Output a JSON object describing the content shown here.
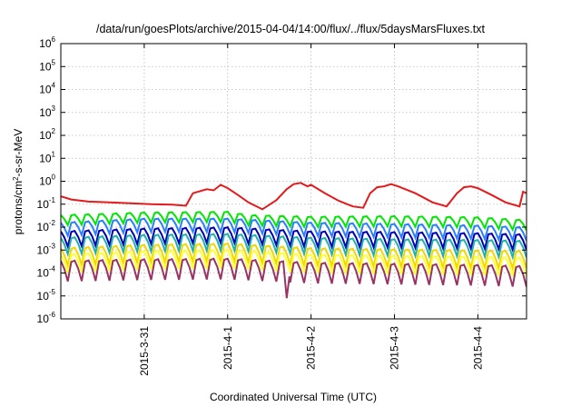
{
  "chart_data": {
    "type": "line",
    "title": "/data/run/goesPlots/archive/2015-04-04/14:00/flux/../flux/5daysMarsFluxes.txt",
    "xlabel": "Coordinated Universal Time (UTC)",
    "ylabel": "protons/cm²-s-sr-MeV",
    "ylabel_parts": [
      "protons/cm",
      "2",
      "-s-sr-MeV"
    ],
    "yscale": "log",
    "ylim": [
      1e-06,
      1000000.0
    ],
    "xlim": [
      "2015-03-30 00:00",
      "2015-04-04 14:00"
    ],
    "grid": true,
    "ytick_labels": [
      {
        "base": "10",
        "exp": "-6",
        "value": 1e-06
      },
      {
        "base": "10",
        "exp": "-5",
        "value": 1e-05
      },
      {
        "base": "10",
        "exp": "-4",
        "value": 0.0001
      },
      {
        "base": "10",
        "exp": "-3",
        "value": 0.001
      },
      {
        "base": "10",
        "exp": "-2",
        "value": 0.01
      },
      {
        "base": "10",
        "exp": "-1",
        "value": 0.1
      },
      {
        "base": "10",
        "exp": "0",
        "value": 1.0
      },
      {
        "base": "10",
        "exp": "1",
        "value": 10.0
      },
      {
        "base": "10",
        "exp": "2",
        "value": 100.0
      },
      {
        "base": "10",
        "exp": "3",
        "value": 1000.0
      },
      {
        "base": "10",
        "exp": "4",
        "value": 10000.0
      },
      {
        "base": "10",
        "exp": "5",
        "value": 100000.0
      },
      {
        "base": "10",
        "exp": "6",
        "value": 1000000.0
      }
    ],
    "xticks": [
      {
        "label": "2015-3-31",
        "value": "2015-03-31 00:00"
      },
      {
        "label": "2015-4-1",
        "value": "2015-04-01 00:00"
      },
      {
        "label": "2015-4-2",
        "value": "2015-04-02 00:00"
      },
      {
        "label": "2015-4-3",
        "value": "2015-04-03 00:00"
      },
      {
        "label": "2015-4-4",
        "value": "2015-04-04 00:00"
      }
    ],
    "series": [
      {
        "color": "#e41a1c",
        "x": [
          "2015-03-30 00:00",
          "2015-03-30 03:00",
          "2015-03-30 08:00",
          "2015-03-30 14:00",
          "2015-03-30 20:00",
          "2015-03-31 02:00",
          "2015-03-31 08:00",
          "2015-03-31 12:00",
          "2015-03-31 14:00",
          "2015-03-31 18:00",
          "2015-03-31 20:00",
          "2015-03-31 22:00",
          "2015-04-01 00:00",
          "2015-04-01 03:00",
          "2015-04-01 06:00",
          "2015-04-01 10:00",
          "2015-04-01 14:00",
          "2015-04-01 17:00",
          "2015-04-01 19:00",
          "2015-04-01 21:00",
          "2015-04-01 23:00",
          "2015-04-02 00:00",
          "2015-04-02 04:00",
          "2015-04-02 08:00",
          "2015-04-02 12:00",
          "2015-04-02 15:00",
          "2015-04-02 17:00",
          "2015-04-02 19:00",
          "2015-04-02 21:00",
          "2015-04-02 23:00",
          "2015-04-03 01:00",
          "2015-04-03 06:00",
          "2015-04-03 11:00",
          "2015-04-03 15:00",
          "2015-04-03 18:00",
          "2015-04-03 20:00",
          "2015-04-03 22:00",
          "2015-04-04 00:00",
          "2015-04-04 04:00",
          "2015-04-04 08:00",
          "2015-04-04 12:00",
          "2015-04-04 13:00",
          "2015-04-04 14:00"
        ],
        "y": [
          0.22,
          0.16,
          0.13,
          0.12,
          0.11,
          0.1,
          0.095,
          0.085,
          0.3,
          0.45,
          0.4,
          0.7,
          0.5,
          0.25,
          0.12,
          0.06,
          0.15,
          0.45,
          0.75,
          0.85,
          0.6,
          0.7,
          0.3,
          0.14,
          0.08,
          0.07,
          0.3,
          0.55,
          0.6,
          0.75,
          0.6,
          0.3,
          0.12,
          0.08,
          0.3,
          0.55,
          0.6,
          0.5,
          0.25,
          0.12,
          0.08,
          0.35,
          0.3
        ]
      },
      {
        "color": "#00e600",
        "x": [
          "2015-03-30 00:00",
          "2015-03-31 00:00",
          "2015-04-01 00:00",
          "2015-04-01 06:00",
          "2015-04-02 00:00",
          "2015-04-03 00:00",
          "2015-04-04 00:00",
          "2015-04-04 14:00"
        ],
        "y": [
          0.02,
          0.026,
          0.028,
          0.02,
          0.017,
          0.018,
          0.016,
          0.012
        ],
        "swing": 0.5
      },
      {
        "color": "#2a7fff",
        "x": [
          "2015-03-30 00:00",
          "2015-03-31 00:00",
          "2015-04-01 00:00",
          "2015-04-02 00:00",
          "2015-04-03 00:00",
          "2015-04-04 00:00",
          "2015-04-04 14:00"
        ],
        "y": [
          0.008,
          0.012,
          0.012,
          0.008,
          0.007,
          0.006,
          0.005
        ],
        "swing": 0.65
      },
      {
        "color": "#0000b4",
        "x": [
          "2015-03-30 00:00",
          "2015-03-31 00:00",
          "2015-04-01 00:00",
          "2015-04-02 00:00",
          "2015-04-03 00:00",
          "2015-04-04 00:00",
          "2015-04-04 14:00"
        ],
        "y": [
          0.003,
          0.004,
          0.0045,
          0.003,
          0.0028,
          0.0025,
          0.0022
        ],
        "swing": 0.75
      },
      {
        "color": "#20b2aa",
        "x": [
          "2015-03-30 00:00",
          "2015-03-31 00:00",
          "2015-04-01 00:00",
          "2015-04-02 00:00",
          "2015-04-03 00:00",
          "2015-04-04 00:00",
          "2015-04-04 14:00"
        ],
        "y": [
          0.0015,
          0.002,
          0.0022,
          0.0015,
          0.0013,
          0.0012,
          0.0011
        ],
        "swing": 0.8
      },
      {
        "color": "#f2d600",
        "x": [
          "2015-03-30 00:00",
          "2015-03-31 00:00",
          "2015-04-01 00:00",
          "2015-04-02 00:00",
          "2015-04-03 00:00",
          "2015-04-04 00:00",
          "2015-04-04 14:00"
        ],
        "y": [
          0.0005,
          0.0007,
          0.0008,
          0.0005,
          0.00045,
          0.0004,
          0.00038
        ],
        "swing": 0.85
      },
      {
        "color": "#ffff33",
        "x": [
          "2015-03-30 00:00",
          "2015-03-31 00:00",
          "2015-04-01 00:00",
          "2015-04-02 00:00",
          "2015-04-03 00:00",
          "2015-04-04 00:00",
          "2015-04-04 14:00"
        ],
        "y": [
          0.00025,
          0.00035,
          0.0004,
          0.00025,
          0.00022,
          0.0002,
          0.00018
        ],
        "swing": 0.9
      },
      {
        "color": "#993366",
        "x": [
          "2015-03-30 00:00",
          "2015-03-31 00:00",
          "2015-04-01 00:00",
          "2015-04-02 00:00",
          "2015-04-03 00:00",
          "2015-04-04 00:00",
          "2015-04-04 14:00"
        ],
        "y": [
          0.00012,
          0.00014,
          0.00015,
          0.0001,
          9e-05,
          8e-05,
          7e-05
        ],
        "swing": 1.0,
        "dip": {
          "x": "2015-04-01 17:00",
          "y": 8e-06
        }
      }
    ]
  }
}
